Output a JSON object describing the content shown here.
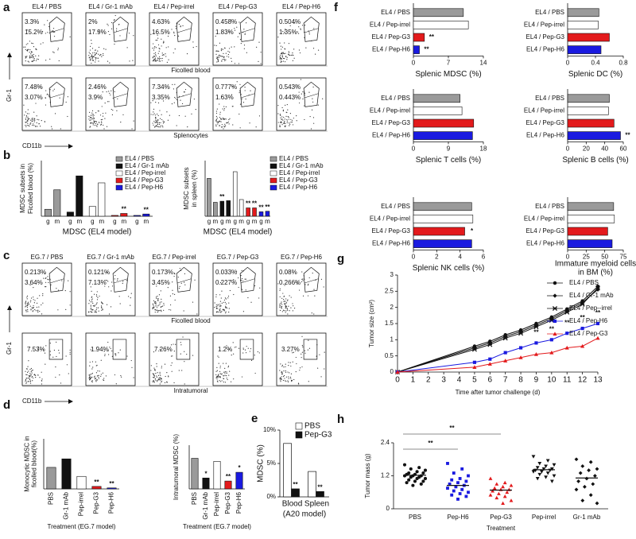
{
  "a": {
    "label": "a",
    "y_axis": "Gr-1",
    "x_axis": "CD11b",
    "rows": [
      {
        "caption": "Ficolled blood",
        "plots": [
          {
            "title": "EL4 / PBS",
            "gates": [
              "3.3%",
              "15.2%"
            ]
          },
          {
            "title": "EL4 / Gr-1 mAb",
            "gates": [
              "2%",
              "17.9%"
            ]
          },
          {
            "title": "EL4 / Pep-irrel",
            "gates": [
              "4.63%",
              "16.5%"
            ]
          },
          {
            "title": "EL4 / Pep-G3",
            "gates": [
              "0.458%",
              "1.83%"
            ]
          },
          {
            "title": "EL4 / Pep-H6",
            "gates": [
              "0.504%",
              "1.35%"
            ]
          }
        ]
      },
      {
        "caption": "Splenocytes",
        "plots": [
          {
            "gates": [
              "7.48%",
              "3.07%"
            ]
          },
          {
            "gates": [
              "2.46%",
              "3.9%"
            ]
          },
          {
            "gates": [
              "7.34%",
              "3.35%"
            ]
          },
          {
            "gates": [
              "0.777%",
              "1.63%"
            ]
          },
          {
            "gates": [
              "0.543%",
              "0.443%"
            ]
          }
        ]
      }
    ]
  },
  "b": {
    "label": "b",
    "charts": [
      {
        "type": "subset_bar",
        "ylabel": [
          "MDSC subsets in",
          "Ficolled blood (%)"
        ],
        "xlabel": "MDSC (EL4 model)",
        "categories": [
          "g",
          "m"
        ],
        "ylim": [
          0,
          20
        ],
        "series": [
          {
            "name": "EL4 / PBS",
            "color": "#9a9a9a",
            "values": [
              2.5,
              9.5
            ]
          },
          {
            "name": "EL4 / Gr-1 mAb",
            "color": "#111111",
            "values": [
              1.5,
              14.5
            ]
          },
          {
            "name": "EL4 / Pep-irrel",
            "color": "#ffffff",
            "values": [
              3.5,
              12
            ]
          },
          {
            "name": "EL4 / Pep-G3",
            "color": "#e31a1c",
            "values": [
              0.3,
              1
            ],
            "annotations": [
              null,
              "**"
            ]
          },
          {
            "name": "EL4 / Pep-H6",
            "color": "#1a1ae0",
            "values": [
              0.3,
              0.8
            ],
            "annotations": [
              null,
              "**"
            ]
          }
        ]
      },
      {
        "type": "subset_bar",
        "ylabel": [
          "MDSC subsets",
          "in spleen (%)"
        ],
        "xlabel": "MDSC (EL4 model)",
        "categories": [
          "g",
          "m"
        ],
        "ylim": [
          0,
          10
        ],
        "series": [
          {
            "name": "EL4 / PBS",
            "color": "#9a9a9a",
            "values": [
              6.8,
              2.5
            ]
          },
          {
            "name": "EL4 / Gr-1 mAb",
            "color": "#111111",
            "values": [
              2.7,
              2.8
            ],
            "annotations": [
              "**",
              null
            ]
          },
          {
            "name": "EL4 / Pep-irrel",
            "color": "#ffffff",
            "values": [
              8,
              3
            ]
          },
          {
            "name": "EL4 / Pep-G3",
            "color": "#e31a1c",
            "values": [
              1.5,
              1.5
            ],
            "annotations": [
              "**",
              "**"
            ]
          },
          {
            "name": "EL4 / Pep-H6",
            "color": "#1a1ae0",
            "values": [
              0.8,
              0.9
            ],
            "annotations": [
              "**",
              "**"
            ]
          }
        ]
      }
    ]
  },
  "c": {
    "label": "c",
    "y_axis": "Gr-1",
    "x_axis": "CD11b",
    "rows": [
      {
        "caption": "Ficolled blood",
        "plots": [
          {
            "title": "EG.7 / PBS",
            "gates": [
              "0.213%",
              "3.64%"
            ]
          },
          {
            "title": "EG.7 / Gr-1 mAb",
            "gates": [
              "0.121%",
              "7.13%"
            ]
          },
          {
            "title": "EG.7 / Pep-irrel",
            "gates": [
              "0.173%",
              "3.45%"
            ]
          },
          {
            "title": "EG.7 / Pep-G3",
            "gates": [
              "0.033%",
              "0.227%"
            ]
          },
          {
            "title": "EG.7 / Pep-H6",
            "gates": [
              "0.08%",
              "0.266%"
            ]
          }
        ]
      },
      {
        "caption": "Intratumoral",
        "plots": [
          {
            "gates": [
              "7.53%"
            ]
          },
          {
            "gates": [
              "1.94%"
            ]
          },
          {
            "gates": [
              "7.26%"
            ]
          },
          {
            "gates": [
              "1.2%"
            ]
          },
          {
            "gates": [
              "3.27%"
            ]
          }
        ]
      }
    ]
  },
  "d": {
    "label": "d",
    "charts": [
      {
        "type": "bar",
        "ylabel": [
          "Monocytic MDSC in",
          "ficolled blood(%)"
        ],
        "xlabel": "Treatment (EG.7 model)",
        "ylim": [
          0,
          10
        ],
        "categories": [
          "PBS",
          "Gr-1 mAb",
          "Pep-irrel",
          "Pep-G3",
          "Pep-H6"
        ],
        "values": [
          4.3,
          6,
          2.5,
          0.5,
          0.2
        ],
        "colors": [
          "#9a9a9a",
          "#111111",
          "#ffffff",
          "#e31a1c",
          "#1a1ae0"
        ],
        "annotations": [
          null,
          null,
          null,
          "**",
          "**"
        ]
      },
      {
        "type": "bar",
        "ylabel": "Intratumoral MDSC (%)",
        "xlabel": "Treatment (EG.7 model)",
        "ylim": [
          0,
          10
        ],
        "categories": [
          "PBS",
          "Gr-1 mAb",
          "Pep-irrel",
          "Pep-G3",
          "Pep-H6"
        ],
        "values": [
          7,
          2.5,
          6.3,
          1.8,
          3.8
        ],
        "colors": [
          "#9a9a9a",
          "#111111",
          "#ffffff",
          "#e31a1c",
          "#1a1ae0"
        ],
        "annotations": [
          null,
          "*",
          null,
          "**",
          "*"
        ]
      }
    ]
  },
  "e": {
    "label": "e",
    "charts": [
      {
        "type": "grouped_bar",
        "ylabel": "MDSC (%)",
        "xlabel": "(A20 model)",
        "ylim": [
          0,
          10
        ],
        "yticks": [
          {
            "value": 0,
            "label": "0%"
          },
          {
            "value": 5,
            "label": "5%"
          },
          {
            "value": 10,
            "label": "10%"
          }
        ],
        "categories": [
          "Blood",
          "Spleen"
        ],
        "series": [
          {
            "name": "PBS",
            "color": "#ffffff",
            "values": [
              8,
              3.8
            ]
          },
          {
            "name": "Pep-G3",
            "color": "#111111",
            "values": [
              1.2,
              0.8
            ],
            "annotations": [
              "**",
              "**"
            ]
          }
        ]
      }
    ]
  },
  "f": {
    "label": "f",
    "charts": [
      {
        "type": "hbar",
        "xlabel": "Splenic MDSC (%)",
        "xlim": [
          0,
          14
        ],
        "xticks": [
          0,
          7,
          14
        ],
        "categories": [
          "EL4 / PBS",
          "EL4 / Pep-irrel",
          "EL4 / Pep-G3",
          "EL4 / Pep-H6"
        ],
        "values": [
          10,
          11,
          2.2,
          1.2
        ],
        "colors": [
          "#9a9a9a",
          "#ffffff",
          "#e31a1c",
          "#1a1ae0"
        ],
        "annotations": [
          null,
          null,
          "**",
          "**"
        ]
      },
      {
        "type": "hbar",
        "xlabel": "Splenic DC (%)",
        "xlim": [
          0,
          0.8
        ],
        "xticks": [
          0,
          0.4,
          0.8
        ],
        "categories": [
          "EL4 / PBS",
          "EL4 / Pep-irrel",
          "EL4 / Pep-G3",
          "EL4 / Pep-H6"
        ],
        "values": [
          0.45,
          0.44,
          0.6,
          0.48
        ],
        "colors": [
          "#9a9a9a",
          "#ffffff",
          "#e31a1c",
          "#1a1ae0"
        ]
      },
      {
        "type": "hbar",
        "xlabel": "Splenic T cells (%)",
        "xlim": [
          0,
          18
        ],
        "xticks": [
          0,
          9,
          18
        ],
        "categories": [
          "EL4 / PBS",
          "EL4 / Pep-irrel",
          "EL4 / Pep-G3",
          "EL4 / Pep-H6"
        ],
        "values": [
          12,
          12.5,
          15.5,
          15.2
        ],
        "colors": [
          "#9a9a9a",
          "#ffffff",
          "#e31a1c",
          "#1a1ae0"
        ]
      },
      {
        "type": "hbar",
        "xlabel": "Splenic B cells (%)",
        "xlim": [
          0,
          60
        ],
        "xticks": [
          0,
          20,
          40,
          60
        ],
        "categories": [
          "EL4 / PBS",
          "EL4 / Pep-irrel",
          "EL4 / Pep-G3",
          "EL4 / Pep-H6"
        ],
        "values": [
          45,
          44,
          50,
          57
        ],
        "colors": [
          "#9a9a9a",
          "#ffffff",
          "#e31a1c",
          "#1a1ae0"
        ],
        "annotations": [
          null,
          null,
          null,
          "**"
        ]
      },
      {
        "type": "hbar",
        "xlabel": "Splenic NK cells (%)",
        "xlim": [
          0,
          6
        ],
        "xticks": [
          0,
          2,
          4,
          6
        ],
        "categories": [
          "EL4 / PBS",
          "EL4 / Pep-irrel",
          "EL4 / Pep-G3",
          "EL4 / Pep-H6"
        ],
        "values": [
          5,
          5.1,
          4.4,
          5
        ],
        "colors": [
          "#9a9a9a",
          "#ffffff",
          "#e31a1c",
          "#1a1ae0"
        ],
        "annotations": [
          null,
          null,
          "*",
          null
        ]
      },
      {
        "type": "hbar",
        "xlabel": [
          "Immature myeloid cells",
          "in BM (%)"
        ],
        "xlim": [
          0,
          75
        ],
        "xticks": [
          0,
          25,
          50,
          75
        ],
        "categories": [
          "EL4 / PBS",
          "EL4 / Pep-irrel",
          "EL4 / Pep-G3",
          "EL4 / Pep-H6"
        ],
        "values": [
          62,
          63,
          54,
          60
        ],
        "colors": [
          "#9a9a9a",
          "#ffffff",
          "#e31a1c",
          "#1a1ae0"
        ]
      }
    ]
  },
  "g": {
    "label": "g",
    "charts": [
      {
        "type": "line",
        "ylabel": "Tumor size (cm²)",
        "xlabel": "Time after tumor challenge (d)",
        "x": [
          0,
          5,
          6,
          7,
          8,
          9,
          10,
          11,
          12,
          13
        ],
        "xlim": [
          0,
          13
        ],
        "xticks": [
          0,
          1,
          2,
          3,
          4,
          5,
          6,
          7,
          8,
          9,
          10,
          11,
          12,
          13
        ],
        "ylim": [
          0,
          3
        ],
        "yticks": [
          0,
          0.5,
          1,
          1.5,
          2,
          2.5,
          3
        ],
        "series": [
          {
            "name": "EL4 / PBS",
            "color": "#111111",
            "marker": "circle",
            "values": [
              0,
              0.8,
              0.95,
              1.15,
              1.3,
              1.5,
              1.7,
              1.95,
              2.2,
              2.65
            ]
          },
          {
            "name": "EL4 / Gr-1 mAb",
            "color": "#111111",
            "marker": "diamond",
            "values": [
              0,
              0.75,
              0.9,
              1.1,
              1.25,
              1.45,
              1.65,
              1.9,
              2.15,
              2.55
            ]
          },
          {
            "name": "EL4 / Pep--irrel",
            "color": "#111111",
            "marker": "star",
            "values": [
              0,
              0.7,
              0.85,
              1.05,
              1.2,
              1.4,
              1.6,
              1.85,
              2.1,
              2.6
            ]
          },
          {
            "name": "EL4 / Pep-H6",
            "color": "#1a1ae0",
            "marker": "square",
            "values": [
              0,
              0.3,
              0.4,
              0.6,
              0.75,
              0.9,
              1.0,
              1.2,
              1.35,
              1.5
            ],
            "annotations": [
              null,
              null,
              null,
              null,
              null,
              "**",
              "**",
              "**",
              "**",
              "**"
            ]
          },
          {
            "name": "EL4 / Pep-G3",
            "color": "#e31a1c",
            "marker": "triangle",
            "values": [
              0,
              0.15,
              0.25,
              0.35,
              0.45,
              0.55,
              0.6,
              0.75,
              0.8,
              1.05
            ]
          }
        ]
      }
    ]
  },
  "h": {
    "label": "h",
    "charts": [
      {
        "type": "strip",
        "ylabel": "Tumor mass (g)",
        "xlabel": "Treatment",
        "ylim": [
          0,
          2.4
        ],
        "yticks": [
          0,
          1.2,
          2.4
        ],
        "categories": [
          "PBS",
          "Pep-H6",
          "Pep-G3",
          "Pep-irrel",
          "Gr-1 mAb"
        ],
        "series": [
          {
            "color": "#111111",
            "marker": "circle",
            "mean": 1.22,
            "values": [
              1.6,
              1.5,
              1.45,
              1.4,
              1.35,
              1.3,
              1.3,
              1.25,
              1.25,
              1.2,
              1.2,
              1.2,
              1.15,
              1.15,
              1.1,
              1.1,
              1.05,
              1.0,
              1.0,
              0.95,
              0.9,
              0.85
            ]
          },
          {
            "color": "#1a1ae0",
            "marker": "square",
            "mean": 0.85,
            "values": [
              1.65,
              1.45,
              1.3,
              1.2,
              1.1,
              1.05,
              1.0,
              0.95,
              0.9,
              0.85,
              0.8,
              0.75,
              0.7,
              0.65,
              0.6,
              0.55,
              0.5,
              0.45,
              0.35
            ]
          },
          {
            "color": "#e31a1c",
            "marker": "triangle",
            "mean": 0.68,
            "values": [
              1.1,
              0.95,
              0.9,
              0.85,
              0.8,
              0.75,
              0.7,
              0.7,
              0.65,
              0.6,
              0.55,
              0.5,
              0.45,
              0.4,
              0.3,
              0.2
            ]
          },
          {
            "color": "#111111",
            "marker": "down",
            "mean": 1.42,
            "values": [
              1.9,
              1.75,
              1.65,
              1.6,
              1.55,
              1.5,
              1.45,
              1.45,
              1.4,
              1.4,
              1.35,
              1.35,
              1.3,
              1.25,
              1.2,
              1.15,
              1.1,
              1.0
            ]
          },
          {
            "color": "#111111",
            "marker": "diamond",
            "mean": 1.12,
            "values": [
              1.8,
              1.7,
              1.55,
              1.45,
              1.4,
              1.3,
              1.2,
              1.1,
              1.0,
              0.9,
              0.8,
              0.7,
              0.5,
              0.3,
              0.2
            ]
          }
        ],
        "significance": [
          {
            "label": "**",
            "pair": [
              0,
              1
            ]
          },
          {
            "label": "**",
            "pair": [
              0,
              2
            ]
          }
        ]
      }
    ]
  }
}
